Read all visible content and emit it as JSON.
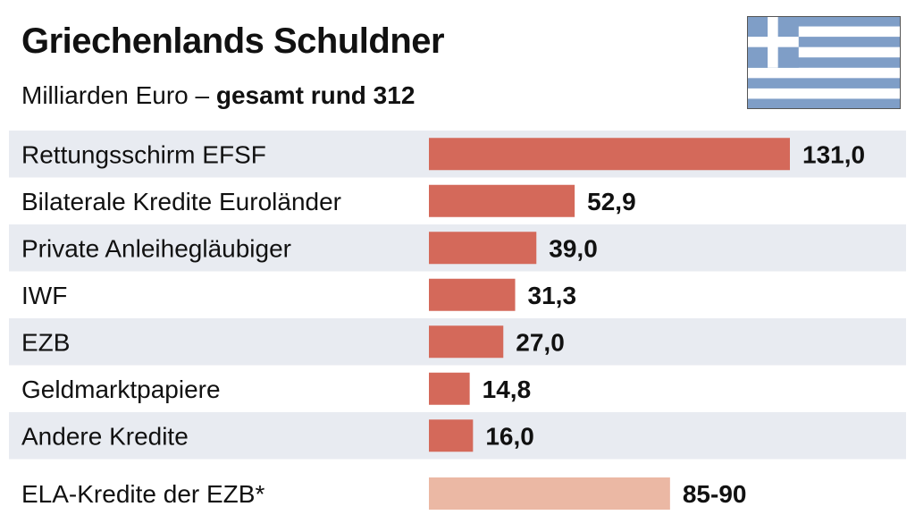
{
  "chart_data": {
    "type": "bar",
    "orientation": "horizontal",
    "title": "Griechenlands Schuldner",
    "subtitle_prefix": "Milliarden Euro – ",
    "subtitle_bold": "gesamt rund 312",
    "categories": [
      "Rettungsschirm EFSF",
      "Bilaterale Kredite Euroländer",
      "Private Anleihegläubiger",
      "IWF",
      "EZB",
      "Geldmarktpapiere",
      "Andere Kredite"
    ],
    "values": [
      131.0,
      52.9,
      39.0,
      31.3,
      27.0,
      14.8,
      16.0
    ],
    "value_labels": [
      "131,0",
      "52,9",
      "39,0",
      "31,3",
      "27,0",
      "14,8",
      "16,0"
    ],
    "extra": {
      "category": "ELA-Kredite der EZB*",
      "value_range": [
        85,
        90
      ],
      "value_label": "85-90"
    },
    "xlim": [
      0,
      131
    ],
    "bar_color": "#d4695a",
    "extra_bar_color": "#ebb8a4",
    "row_band_color": "#e8ebf1",
    "grid": false,
    "legend": "none"
  },
  "flag": {
    "icon": "greece-flag-icon",
    "blue": "#7f9ec7",
    "white": "#ffffff",
    "border": "#555555"
  }
}
